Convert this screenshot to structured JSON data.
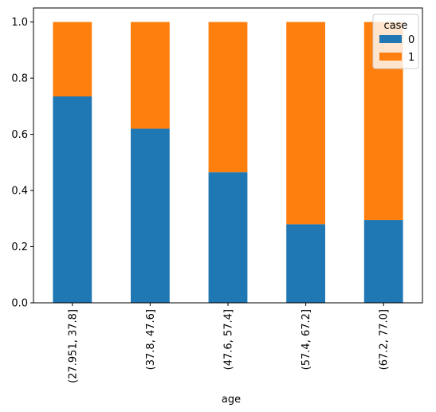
{
  "chart_data": {
    "type": "bar",
    "stacked": true,
    "categories": [
      "(27.951, 37.8]",
      "(37.8, 47.6]",
      "(47.6, 57.4]",
      "(57.4, 67.2]",
      "(67.2, 77.0]"
    ],
    "series": [
      {
        "name": "0",
        "values": [
          0.735,
          0.62,
          0.465,
          0.28,
          0.295
        ],
        "color": "#1f77b4"
      },
      {
        "name": "1",
        "values": [
          0.265,
          0.38,
          0.535,
          0.72,
          0.705
        ],
        "color": "#ff7f0e"
      }
    ],
    "xlabel": "age",
    "ylabel": "",
    "ylim": [
      0,
      1.05
    ],
    "yticks": [
      0.0,
      0.2,
      0.4,
      0.6,
      0.8,
      1.0
    ],
    "ytick_labels": [
      "0.0",
      "0.2",
      "0.4",
      "0.6",
      "0.8",
      "1.0"
    ],
    "legend": {
      "title": "case",
      "placement": "top-right"
    },
    "grid": false
  }
}
